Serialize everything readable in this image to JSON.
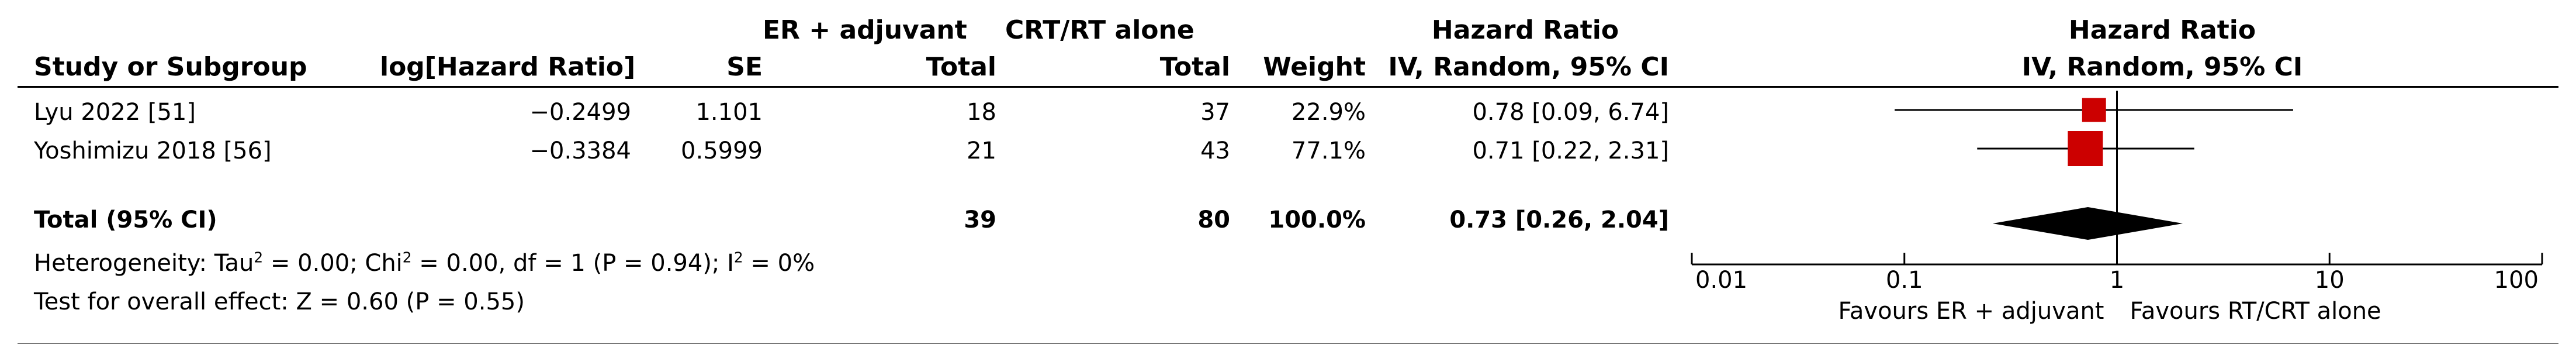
{
  "header": {
    "study": "Study or Subgroup",
    "log_hr": "log[Hazard Ratio]",
    "se": "SE",
    "group1_name": "ER + adjuvant",
    "group1_total": "Total",
    "group2_name": "CRT/RT alone",
    "group2_total": "Total",
    "weight": "Weight",
    "hr_title": "Hazard Ratio",
    "hr_method": "IV, Random, 95% CI",
    "plot_title": "Hazard Ratio",
    "plot_method": "IV, Random, 95% CI"
  },
  "studies": [
    {
      "name": "Lyu 2022 [51]",
      "log_hr": "−0.2499",
      "se": "1.101",
      "total1": "18",
      "total2": "37",
      "weight": "22.9%",
      "ci_text": "0.78 [0.09, 6.74]"
    },
    {
      "name": "Yoshimizu 2018 [56]",
      "log_hr": "−0.3384",
      "se": "0.5999",
      "total1": "21",
      "total2": "43",
      "weight": "77.1%",
      "ci_text": "0.71 [0.22, 2.31]"
    }
  ],
  "total": {
    "label": "Total (95% CI)",
    "total1": "39",
    "total2": "80",
    "weight": "100.0%",
    "ci_text": "0.73 [0.26, 2.04]"
  },
  "heterogeneity": {
    "prefix": "Heterogeneity: Tau",
    "tau_sup": "2",
    "tau_val": " = 0.00; Chi",
    "chi_sup": "2",
    "chi_val": " = 0.00, df = 1 (P = 0.94); I",
    "i_sup": "2",
    "i_val": " = 0%"
  },
  "overall_effect": "Test for overall effect: Z = 0.60 (P = 0.55)",
  "axis": {
    "ticks": [
      "0.01",
      "0.1",
      "1",
      "10",
      "100"
    ],
    "favours_left": "Favours ER + adjuvant",
    "favours_right": "Favours RT/CRT alone"
  },
  "colors": {
    "study_marker": "#cc0000",
    "diamond": "#000000",
    "lines": "#000000"
  },
  "chart_data": {
    "type": "forest",
    "scale": "log",
    "xlim": [
      0.01,
      100
    ],
    "null_line": 1,
    "series": [
      {
        "name": "Lyu 2022 [51]",
        "estimate": 0.78,
        "ci": [
          0.09,
          6.74
        ],
        "weight": 22.9
      },
      {
        "name": "Yoshimizu 2018 [56]",
        "estimate": 0.71,
        "ci": [
          0.22,
          2.31
        ],
        "weight": 77.1
      }
    ],
    "pooled": {
      "name": "Total (95% CI)",
      "estimate": 0.73,
      "ci": [
        0.26,
        2.04
      ]
    }
  }
}
